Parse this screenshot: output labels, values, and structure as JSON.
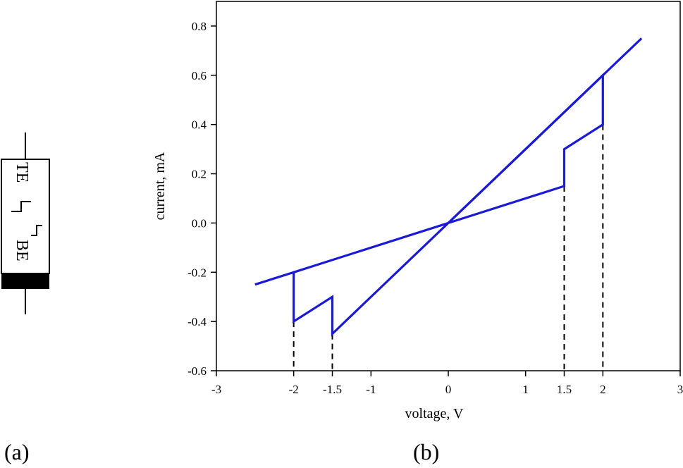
{
  "panel_a": {
    "caption": "(a)",
    "top_electrode_label": "TE",
    "bottom_electrode_label": "BE"
  },
  "panel_b": {
    "caption": "(b)"
  },
  "chart_data": {
    "type": "line",
    "xlabel": "voltage, V",
    "ylabel": "current, mA",
    "xlim": [
      -3,
      3
    ],
    "ylim": [
      -0.6,
      0.9
    ],
    "x_ticks": [
      -3,
      -2,
      -1.5,
      -1,
      0,
      1,
      1.5,
      2,
      3
    ],
    "x_tick_labels": [
      "-3",
      "-2",
      "-1.5",
      "-1",
      "0",
      "1",
      "1.5",
      "2",
      "3"
    ],
    "y_ticks": [
      -0.6,
      -0.4,
      -0.2,
      0.0,
      0.2,
      0.4,
      0.6,
      0.8
    ],
    "y_tick_labels": [
      "-0.6",
      "-0.4",
      "-0.2",
      "0.0",
      "0.2",
      "0.4",
      "0.6",
      "0.8"
    ],
    "grid": false,
    "series": [
      {
        "color": "#1a1ad6",
        "x": [
          -2.5,
          -2,
          -2,
          -1.5,
          -1.5,
          0,
          2.5
        ],
        "y": [
          -0.25,
          -0.2,
          -0.4,
          -0.3,
          -0.45,
          0,
          0.75
        ]
      },
      {
        "color": "#1a1ad6",
        "x": [
          -2,
          0,
          1.5,
          1.5,
          2,
          2,
          0
        ],
        "y": [
          -0.2,
          0,
          0.15,
          0.3,
          0.4,
          0.6,
          0
        ]
      }
    ],
    "dashed_markers": [
      {
        "x": -2,
        "y_from": -0.4
      },
      {
        "x": -1.5,
        "y_from": -0.45
      },
      {
        "x": 1.5,
        "y_from": 0.15
      },
      {
        "x": 2,
        "y_from": 0.4
      }
    ]
  }
}
